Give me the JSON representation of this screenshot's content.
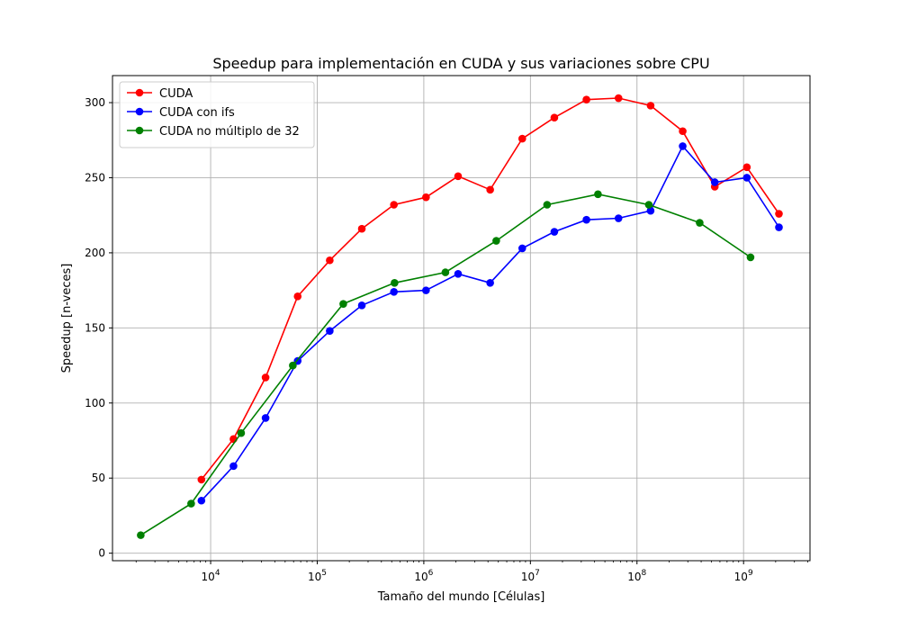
{
  "chart_data": {
    "type": "line",
    "title": "Speedup para implementación en CUDA y sus variaciones sobre CPU",
    "xlabel": "Tamaño del mundo [Células]",
    "ylabel": "Speedup [n-veces]",
    "xscale": "log",
    "xlim": [
      1200,
      4200000000
    ],
    "ylim": [
      -5,
      318
    ],
    "x_ticks": [
      {
        "value": 10000,
        "base": "10",
        "exp": "4"
      },
      {
        "value": 100000,
        "base": "10",
        "exp": "5"
      },
      {
        "value": 1000000,
        "base": "10",
        "exp": "6"
      },
      {
        "value": 10000000,
        "base": "10",
        "exp": "7"
      },
      {
        "value": 100000000,
        "base": "10",
        "exp": "8"
      },
      {
        "value": 1000000000,
        "base": "10",
        "exp": "9"
      }
    ],
    "y_ticks": [
      0,
      50,
      100,
      150,
      200,
      250,
      300
    ],
    "grid": true,
    "legend_position": "top-left",
    "series": [
      {
        "name": "CUDA",
        "color": "#ff0000",
        "x": [
          8192,
          16384,
          32768,
          65536,
          131072,
          262144,
          524288,
          1048576,
          2097152,
          4194304,
          8388608,
          16777216,
          33554432,
          67108864,
          134217728,
          268435456,
          536870912,
          1073741824,
          2147483648
        ],
        "y": [
          49,
          76,
          117,
          171,
          195,
          216,
          232,
          237,
          251,
          242,
          276,
          290,
          302,
          303,
          298,
          281,
          244,
          257,
          226
        ]
      },
      {
        "name": "CUDA con ifs",
        "color": "#0000ff",
        "x": [
          8192,
          16384,
          32768,
          65536,
          131072,
          262144,
          524288,
          1048576,
          2097152,
          4194304,
          8388608,
          16777216,
          33554432,
          67108864,
          134217728,
          268435456,
          536870912,
          1073741824,
          2147483648
        ],
        "y": [
          35,
          58,
          90,
          128,
          148,
          165,
          174,
          175,
          186,
          180,
          203,
          214,
          222,
          223,
          228,
          271,
          247,
          250,
          217
        ]
      },
      {
        "name": "CUDA no múltiplo de 32",
        "color": "#008000",
        "x": [
          2209,
          6561,
          19321,
          59049,
          175561,
          531441,
          1594323,
          4782969,
          14348907,
          43046721,
          129140163,
          387420489,
          1162261467
        ],
        "y": [
          12,
          33,
          80,
          125,
          166,
          180,
          187,
          208,
          232,
          239,
          232,
          220,
          197
        ]
      }
    ]
  }
}
